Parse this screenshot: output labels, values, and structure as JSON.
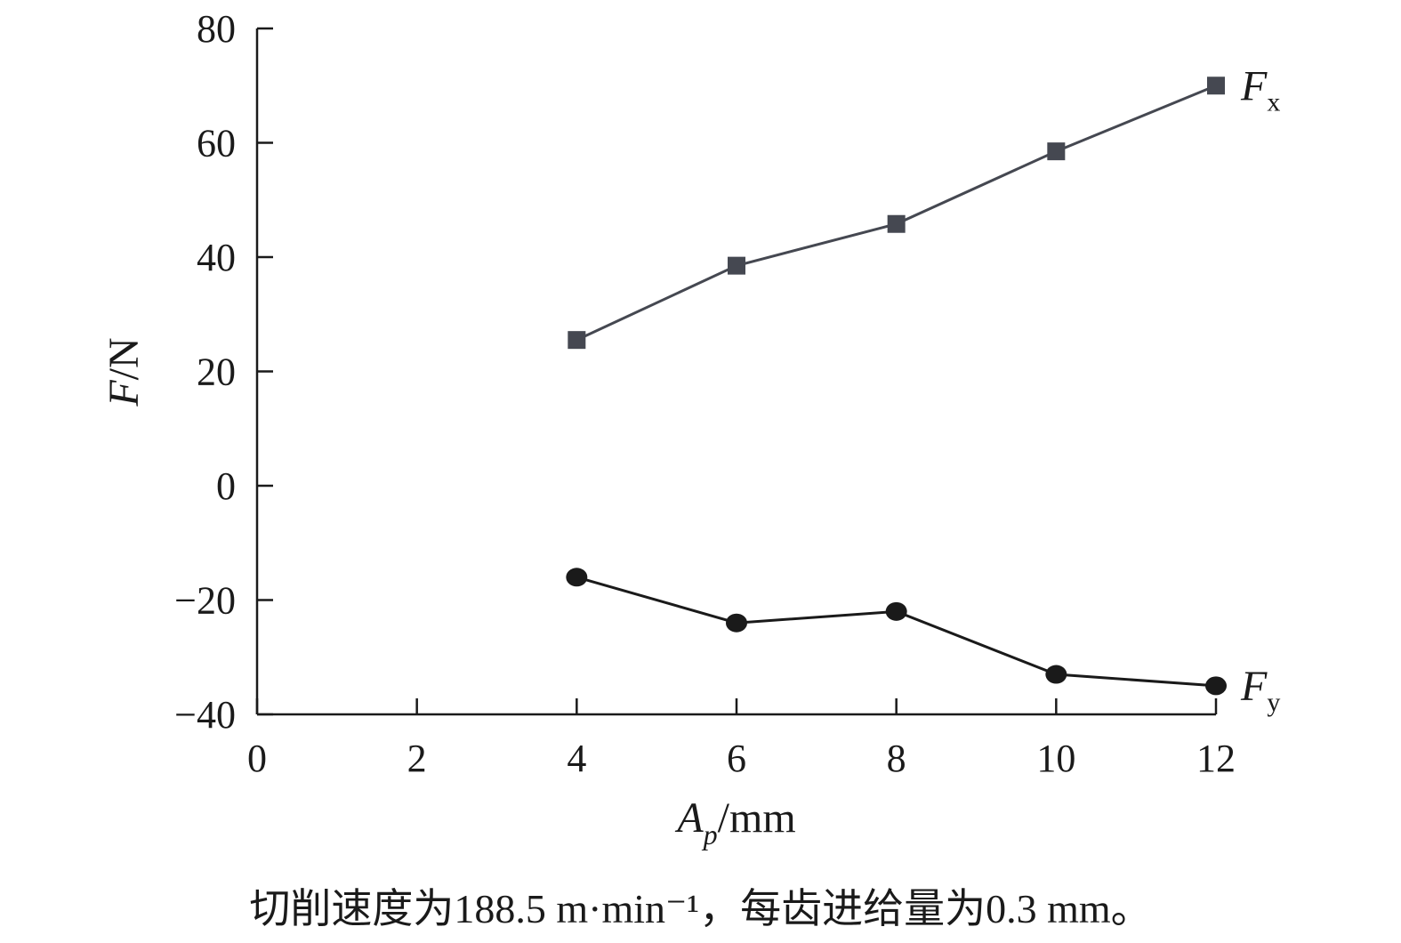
{
  "chart_data": {
    "type": "line",
    "xlabel_main": "A",
    "xlabel_sub": "p",
    "xlabel_unit": "/mm",
    "ylabel_main": "F",
    "ylabel_unit": "/N",
    "xlim": [
      0,
      12
    ],
    "ylim": [
      -40,
      80
    ],
    "xticks": [
      0,
      2,
      4,
      6,
      8,
      10,
      12
    ],
    "yticks": [
      -40,
      -20,
      0,
      20,
      40,
      60,
      80
    ],
    "xtick_labels": [
      "0",
      "2",
      "4",
      "6",
      "8",
      "10",
      "12"
    ],
    "ytick_labels": [
      "−40",
      "−20",
      "0",
      "20",
      "40",
      "60",
      "80"
    ],
    "grid": false,
    "x": [
      4,
      6,
      8,
      10,
      12
    ],
    "series": [
      {
        "name": "Fx",
        "label_main": "F",
        "label_sub": "x",
        "values": [
          25.5,
          38.5,
          45.8,
          58.5,
          70.0
        ],
        "marker": "square",
        "color": "#454851"
      },
      {
        "name": "Fy",
        "label_main": "F",
        "label_sub": "y",
        "values": [
          -16.0,
          -24.0,
          -22.0,
          -33.0,
          -35.0
        ],
        "marker": "circle",
        "color": "#1a1a1a"
      }
    ]
  },
  "caption": "切削速度为188.5 m·min⁻¹，每齿进给量为0.3 mm。"
}
